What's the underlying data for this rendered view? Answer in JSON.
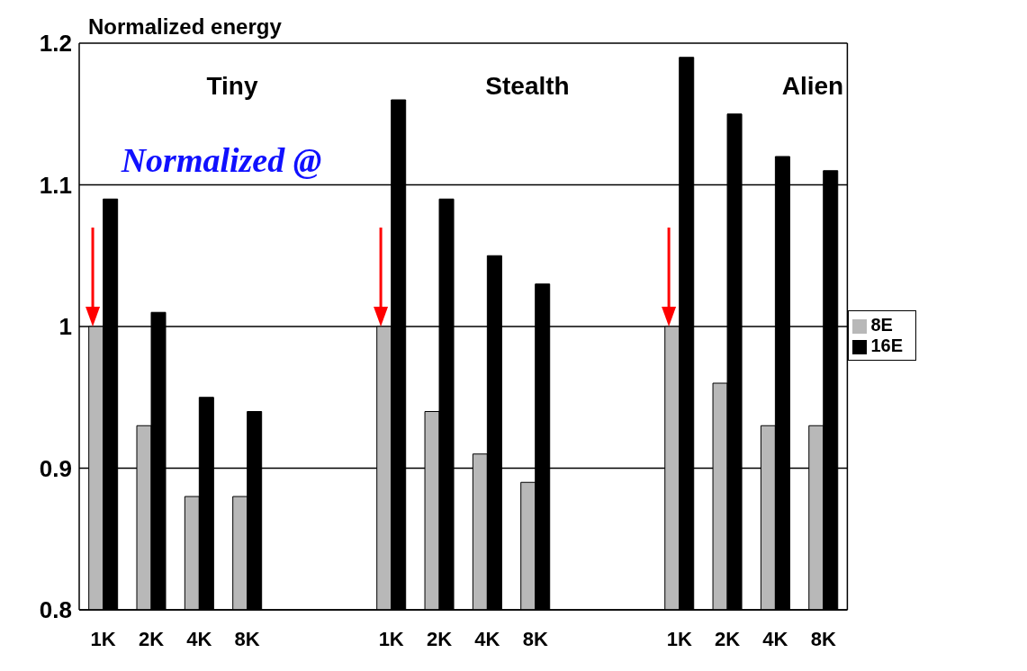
{
  "chart_data": {
    "type": "bar",
    "ylabel": "Normalized energy",
    "categories": [
      "1K",
      "2K",
      "4K",
      "8K",
      null,
      null,
      "1K",
      "2K",
      "4K",
      "8K",
      null,
      null,
      "1K",
      "2K",
      "4K",
      "8K"
    ],
    "series": [
      {
        "name": "8E",
        "color": "#b8b8b8",
        "values": [
          1.0,
          0.93,
          0.88,
          0.88,
          null,
          null,
          1.0,
          0.94,
          0.91,
          0.89,
          null,
          null,
          1.0,
          0.96,
          0.93,
          0.93
        ]
      },
      {
        "name": "16E",
        "color": "#000000",
        "values": [
          1.09,
          1.01,
          0.95,
          0.94,
          null,
          null,
          1.16,
          1.09,
          1.05,
          1.03,
          null,
          null,
          1.19,
          1.15,
          1.12,
          1.11
        ]
      }
    ],
    "ylim": [
      0.8,
      1.2
    ],
    "yticks": [
      0.8,
      0.9,
      1,
      1.1,
      1.2
    ],
    "grid": "y",
    "legend": "right",
    "annotations": [
      "Tiny",
      "Stealth",
      "Alien",
      "Normalized @"
    ]
  }
}
